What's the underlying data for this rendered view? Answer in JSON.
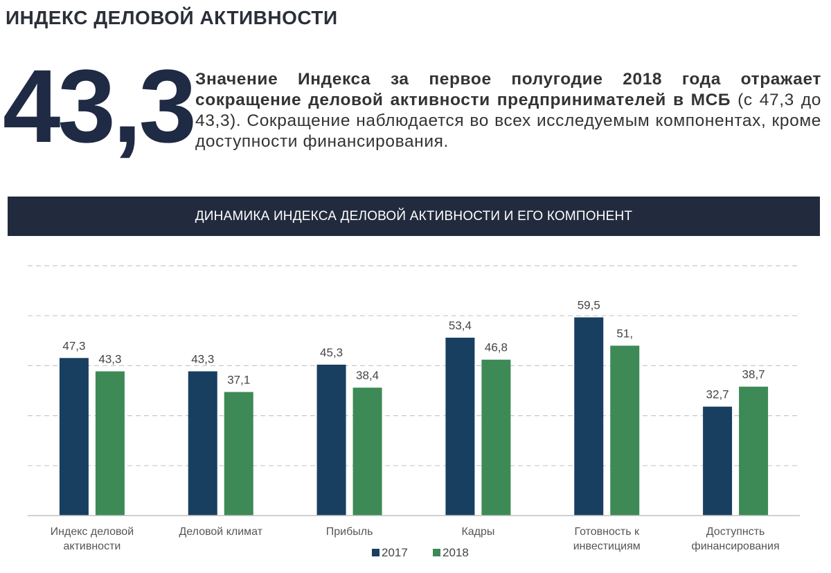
{
  "header": {
    "title": "ИНДЕКС ДЕЛОВОЙ АКТИВНОСТИ",
    "big_value": "43,3",
    "summary_bold": "Значение Индекса за первое полугодие 2018 года отражает сокращение деловой активности предпринимателей в МСБ",
    "summary_rest": " (с 47,3 до 43,3). Сокращение наблюдается во всех исследуемым компонентах, кроме доступности финансирования."
  },
  "banner": {
    "label": "ДИНАМИКА ИНДЕКСА ДЕЛОВОЙ АКТИВНОСТИ И ЕГО КОМПОНЕНТ"
  },
  "colors": {
    "series_2017": "#183f60",
    "series_2018": "#3d8a56",
    "banner": "#222b3d",
    "grid": "#c8c8c8"
  },
  "chart_data": {
    "type": "bar",
    "title": "ДИНАМИКА ИНДЕКСА ДЕЛОВОЙ АКТИВНОСТИ И ЕГО КОМПОНЕНТ",
    "categories": [
      [
        "Индекс деловой",
        "активности"
      ],
      [
        "Деловой климат"
      ],
      [
        "Прибыль"
      ],
      [
        "Кадры"
      ],
      [
        "Готовность к",
        "инвестициям"
      ],
      [
        "Доступнсть",
        "финансирования"
      ]
    ],
    "series": [
      {
        "name": "2017",
        "values": [
          47.3,
          43.3,
          45.3,
          53.4,
          59.5,
          32.7
        ],
        "labels": [
          "47,3",
          "43,3",
          "45,3",
          "53,4",
          "59,5",
          "32,7"
        ]
      },
      {
        "name": "2018",
        "values": [
          43.3,
          37.1,
          38.4,
          46.8,
          51.0,
          38.7
        ],
        "labels": [
          "43,3",
          "37,1",
          "38,4",
          "46,8",
          "51,",
          "38,7"
        ]
      }
    ],
    "ylim": [
      0,
      75
    ],
    "grid": true,
    "gridlines": [
      15,
      30,
      45,
      60,
      75
    ],
    "legend": "bottom-center"
  }
}
